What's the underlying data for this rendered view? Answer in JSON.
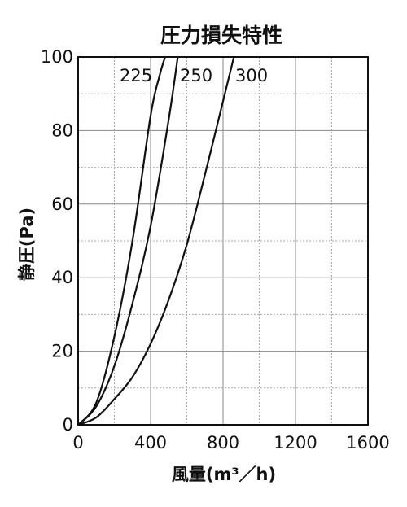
{
  "chart_data": {
    "type": "line",
    "title": "圧力損失特性",
    "xlabel": "風量(m³／h)",
    "ylabel": "静圧(Pa)",
    "xlim": [
      0,
      1600
    ],
    "ylim": [
      0,
      100
    ],
    "x_ticks": [
      "0",
      "400",
      "800",
      "1200",
      "1600"
    ],
    "y_ticks": [
      "0",
      "20",
      "40",
      "60",
      "80",
      "100"
    ],
    "x_minor_step": 200,
    "y_minor_step": 10,
    "grid": true,
    "series": [
      {
        "name": "225",
        "x": [
          0,
          100,
          200,
          300,
          400,
          450,
          480
        ],
        "y": [
          0,
          6,
          24,
          50,
          84,
          95,
          100
        ]
      },
      {
        "name": "250",
        "x": [
          0,
          100,
          200,
          300,
          400,
          500,
          550
        ],
        "y": [
          0,
          5,
          16,
          33,
          54,
          83,
          100
        ]
      },
      {
        "name": "300",
        "x": [
          0,
          100,
          200,
          300,
          400,
          500,
          600,
          700,
          800,
          860
        ],
        "y": [
          0,
          2,
          7,
          13,
          22,
          34,
          49,
          68,
          88,
          100
        ]
      }
    ]
  }
}
